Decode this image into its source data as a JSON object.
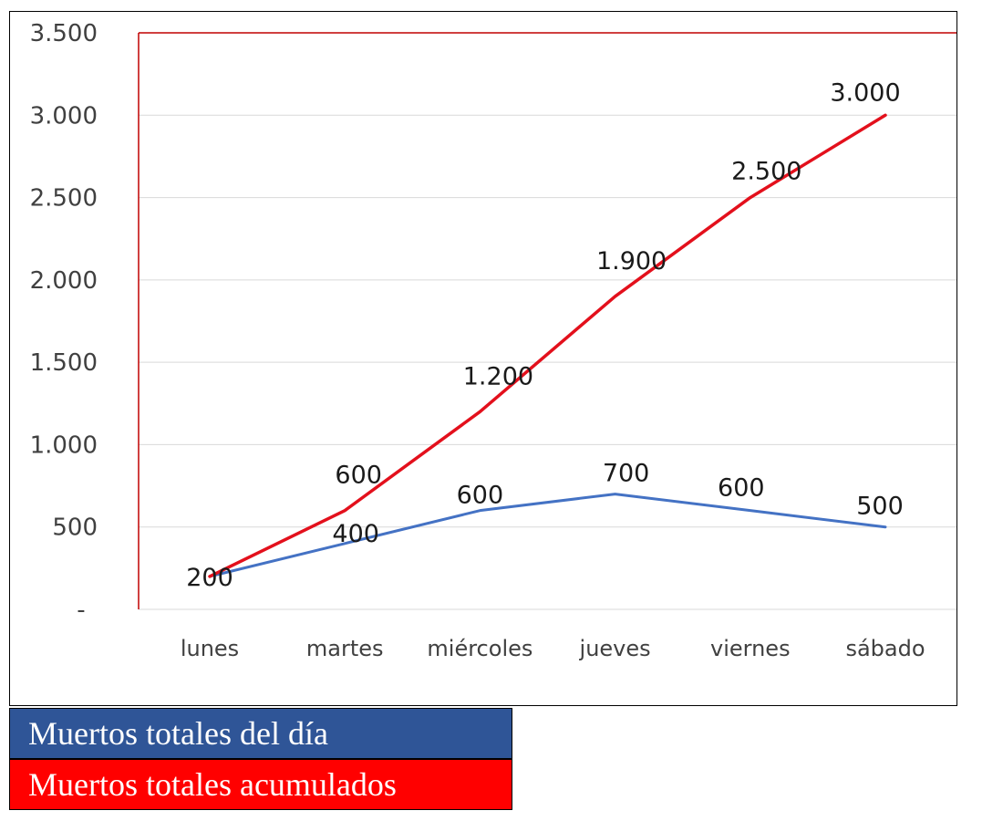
{
  "chart_data": {
    "type": "line",
    "categories": [
      "lunes",
      "martes",
      "miércoles",
      "jueves",
      "viernes",
      "sábado"
    ],
    "series": [
      {
        "name": "Muertos totales del día",
        "color": "#4472c4",
        "values": [
          200,
          400,
          600,
          700,
          600,
          500
        ],
        "labels": [
          "200",
          "400",
          "600",
          "700",
          "600",
          "500"
        ]
      },
      {
        "name": "Muertos totales acumulados",
        "color": "#e3101c",
        "values": [
          200,
          600,
          1200,
          1900,
          2500,
          3000
        ],
        "labels": [
          "",
          "600",
          "1.200",
          "1.900",
          "2.500",
          "3.000"
        ]
      }
    ],
    "ylim": [
      0,
      3500
    ],
    "yticks": [
      0,
      500,
      1000,
      1500,
      2000,
      2500,
      3000,
      3500
    ],
    "ytick_labels": [
      "-",
      "500",
      "1.000",
      "1.500",
      "2.000",
      "2.500",
      "3.000",
      "3.500"
    ],
    "grid": true,
    "plot_border_color": "#c00000",
    "legend_placement": "bottom-left"
  },
  "legend": {
    "daily": {
      "label": "Muertos totales del día",
      "color": "#2f5597"
    },
    "cumulative": {
      "label": "Muertos totales acumulados",
      "color": "#ff0000"
    }
  }
}
